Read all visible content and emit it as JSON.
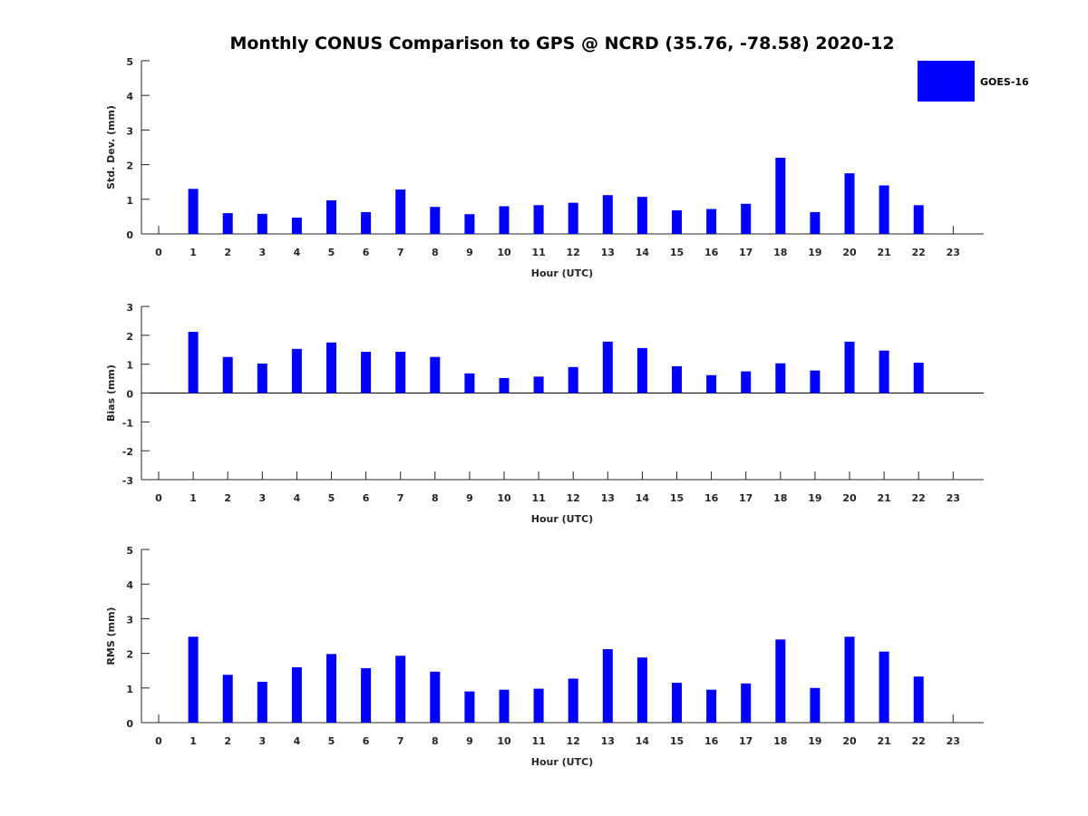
{
  "title": "Monthly CONUS Comparison to GPS @ NCRD (35.76, -78.58) 2020-12",
  "legend": {
    "label": "GOES-16",
    "color": "#0000ff"
  },
  "chart_data": [
    {
      "type": "bar",
      "name": "std",
      "xlabel": "Hour (UTC)",
      "ylabel": "Std. Dev. (mm)",
      "ylim": [
        0,
        5
      ],
      "yticks": [
        0,
        1,
        2,
        3,
        4,
        5
      ],
      "categories": [
        "0",
        "1",
        "2",
        "3",
        "4",
        "5",
        "6",
        "7",
        "8",
        "9",
        "10",
        "11",
        "12",
        "13",
        "14",
        "15",
        "16",
        "17",
        "18",
        "19",
        "20",
        "21",
        "22",
        "23"
      ],
      "series": [
        {
          "name": "GOES-16",
          "color": "#0000ff",
          "values": [
            null,
            1.3,
            0.6,
            0.58,
            0.47,
            0.97,
            0.63,
            1.28,
            0.78,
            0.57,
            0.8,
            0.83,
            0.9,
            1.12,
            1.07,
            0.68,
            0.72,
            0.87,
            2.2,
            0.63,
            1.75,
            1.4,
            0.83,
            null
          ]
        }
      ]
    },
    {
      "type": "bar",
      "name": "bias",
      "xlabel": "Hour (UTC)",
      "ylabel": "Bias (mm)",
      "ylim": [
        -3,
        3
      ],
      "yticks": [
        -3,
        -2,
        -1,
        0,
        1,
        2,
        3
      ],
      "zero_line": true,
      "categories": [
        "0",
        "1",
        "2",
        "3",
        "4",
        "5",
        "6",
        "7",
        "8",
        "9",
        "10",
        "11",
        "12",
        "13",
        "14",
        "15",
        "16",
        "17",
        "18",
        "19",
        "20",
        "21",
        "22",
        "23"
      ],
      "series": [
        {
          "name": "GOES-16",
          "color": "#0000ff",
          "values": [
            null,
            2.12,
            1.25,
            1.02,
            1.53,
            1.75,
            1.43,
            1.43,
            1.25,
            0.68,
            0.52,
            0.57,
            0.9,
            1.78,
            1.56,
            0.93,
            0.62,
            0.75,
            1.03,
            0.78,
            1.78,
            1.47,
            1.05,
            null
          ]
        }
      ]
    },
    {
      "type": "bar",
      "name": "rms",
      "xlabel": "Hour (UTC)",
      "ylabel": "RMS (mm)",
      "ylim": [
        0,
        5
      ],
      "yticks": [
        0,
        1,
        2,
        3,
        4,
        5
      ],
      "categories": [
        "0",
        "1",
        "2",
        "3",
        "4",
        "5",
        "6",
        "7",
        "8",
        "9",
        "10",
        "11",
        "12",
        "13",
        "14",
        "15",
        "16",
        "17",
        "18",
        "19",
        "20",
        "21",
        "22",
        "23"
      ],
      "series": [
        {
          "name": "GOES-16",
          "color": "#0000ff",
          "values": [
            null,
            2.48,
            1.38,
            1.18,
            1.6,
            1.98,
            1.57,
            1.93,
            1.47,
            0.9,
            0.95,
            0.98,
            1.27,
            2.12,
            1.88,
            1.15,
            0.95,
            1.13,
            2.4,
            1.0,
            2.48,
            2.05,
            1.33,
            null
          ]
        }
      ]
    }
  ]
}
